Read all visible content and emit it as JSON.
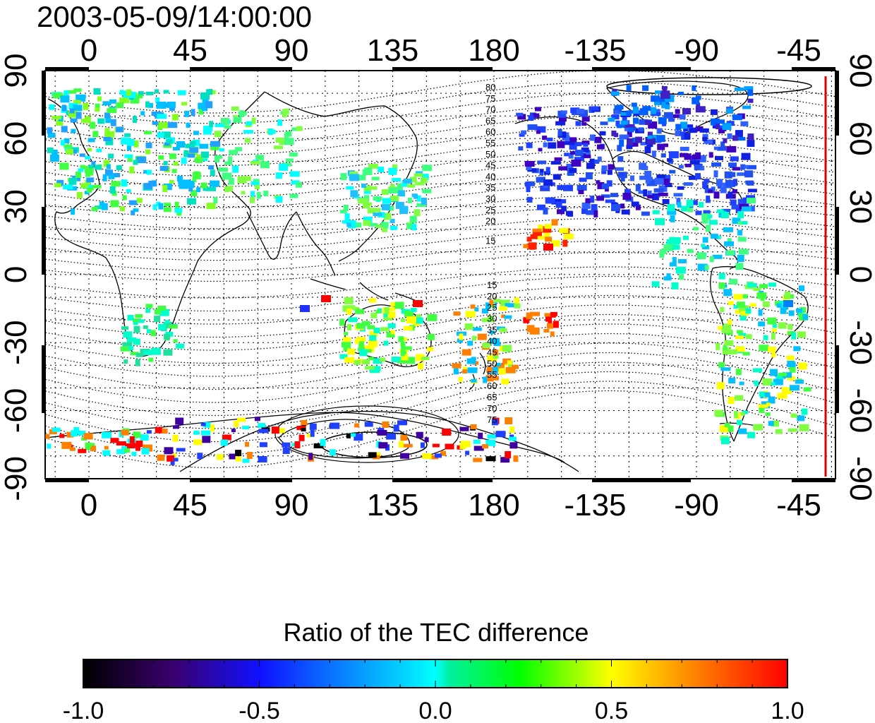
{
  "timestamp": "2003-05-09/14:00:00",
  "map": {
    "top_axis_labels": [
      "0",
      "45",
      "90",
      "135",
      "180",
      "-135",
      "-90",
      "-45"
    ],
    "bottom_axis_labels": [
      "0",
      "45",
      "90",
      "135",
      "180",
      "-135",
      "-90",
      "-45"
    ],
    "left_axis_labels": [
      "90",
      "60",
      "30",
      "0",
      "-30",
      "-60",
      "-90"
    ],
    "right_axis_labels": [
      "90",
      "60",
      "30",
      "0",
      "-30",
      "-60",
      "-90"
    ],
    "contour_labels_north": [
      "80",
      "75",
      "70",
      "65",
      "60",
      "55",
      "50",
      "45",
      "40",
      "35",
      "30",
      "25",
      "20",
      "15"
    ],
    "contour_labels_south": [
      "15",
      "20",
      "25",
      "30",
      "35",
      "40",
      "45",
      "50",
      "55",
      "60",
      "65",
      "70",
      "75"
    ],
    "marker_line_color": "#e00000"
  },
  "colorbar": {
    "title": "Ratio of the TEC difference",
    "tick_labels": [
      "-1.0",
      "-0.5",
      "0.0",
      "0.5",
      "1.0"
    ],
    "range": [
      -1.0,
      1.0
    ],
    "stops": [
      "#000000",
      "#3c0080",
      "#0000ff",
      "#00ffff",
      "#00ff00",
      "#ffff00",
      "#ff0000"
    ]
  }
}
